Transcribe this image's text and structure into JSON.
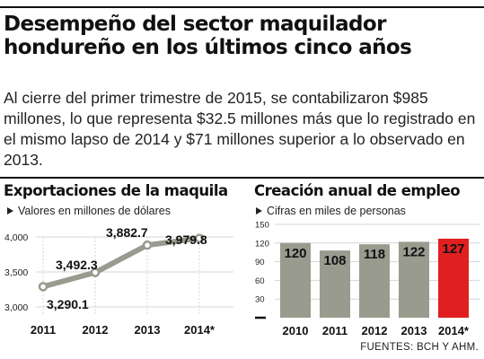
{
  "headline": {
    "title_line1": "Desempeño del sector maquilador",
    "title_line2": "hondureño en los últimos cinco años",
    "lead": "Al cierre del primer trimestre de 2015, se contabilizaron $985 millones, lo que representa $32.5 millones más que lo registrado en el mismo lapso de 2014 y $71 millones superior a lo observado en 2013."
  },
  "source": "FUENTES: BCH Y AHM.",
  "colors": {
    "line": "#9a9b8f",
    "bar": "#9a9b8f",
    "bar_highlight": "#e02020",
    "grid": "#d4d4d4"
  },
  "chart_data": [
    {
      "type": "line",
      "title": "Exportaciones de la maquila",
      "subtitle": "Valores en millones de dólares",
      "categories": [
        "2011",
        "2012",
        "2013",
        "2014*"
      ],
      "values": [
        3290.1,
        3492.3,
        3882.7,
        3979.8
      ],
      "value_labels": [
        "3,290.1",
        "3,492.3",
        "3,882.7",
        "3,979.8"
      ],
      "yticks": [
        "3,000",
        "3,500",
        "4,000"
      ],
      "ylim": [
        3000,
        4000
      ],
      "grid": true,
      "legend": "none"
    },
    {
      "type": "bar",
      "title": "Creación anual de empleo",
      "subtitle": "Cifras en miles de personas",
      "categories": [
        "2010",
        "2011",
        "2012",
        "2013",
        "2014*"
      ],
      "values": [
        120,
        108,
        118,
        122,
        127
      ],
      "highlight_index": 4,
      "yticks": [
        "0",
        "30",
        "60",
        "90",
        "120",
        "150"
      ],
      "ylim": [
        0,
        150
      ],
      "grid": true,
      "legend": "none"
    }
  ]
}
